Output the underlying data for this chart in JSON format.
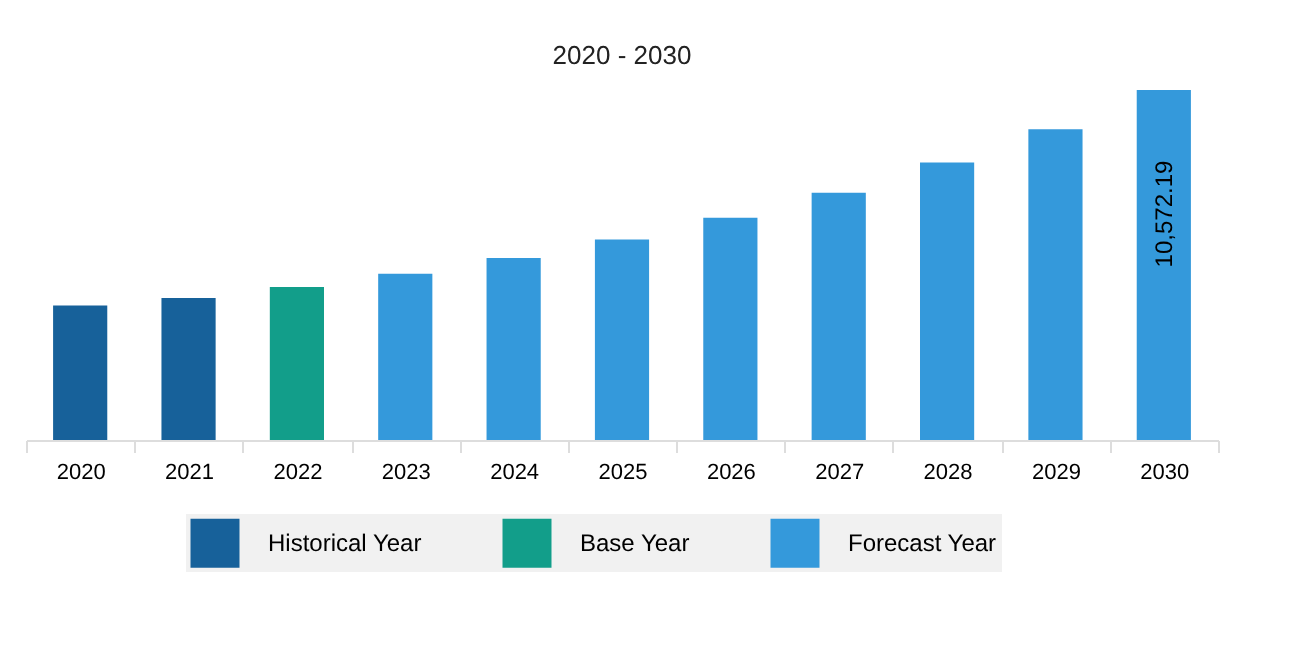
{
  "chart_data": {
    "type": "bar",
    "title": "2020 - 2030",
    "categories": [
      "2020",
      "2021",
      "2022",
      "2023",
      "2024",
      "2025",
      "2026",
      "2027",
      "2028",
      "2029",
      "2030"
    ],
    "series": [
      {
        "name": "Historical Year",
        "color": "#17619a",
        "values": [
          4060,
          4290,
          null,
          null,
          null,
          null,
          null,
          null,
          null,
          null,
          null
        ]
      },
      {
        "name": "Base Year",
        "color": "#129e8a",
        "values": [
          null,
          null,
          4620,
          null,
          null,
          null,
          null,
          null,
          null,
          null,
          null
        ]
      },
      {
        "name": "Forecast Year",
        "color": "#3499db",
        "values": [
          null,
          null,
          null,
          5020,
          5500,
          6060,
          6710,
          7470,
          8380,
          9390,
          10572.19
        ],
        "value_labels": [
          null,
          null,
          null,
          null,
          null,
          null,
          null,
          null,
          null,
          null,
          "10,572.19"
        ]
      }
    ],
    "tick_labels": "x",
    "grid": false,
    "legend": "bottom"
  }
}
